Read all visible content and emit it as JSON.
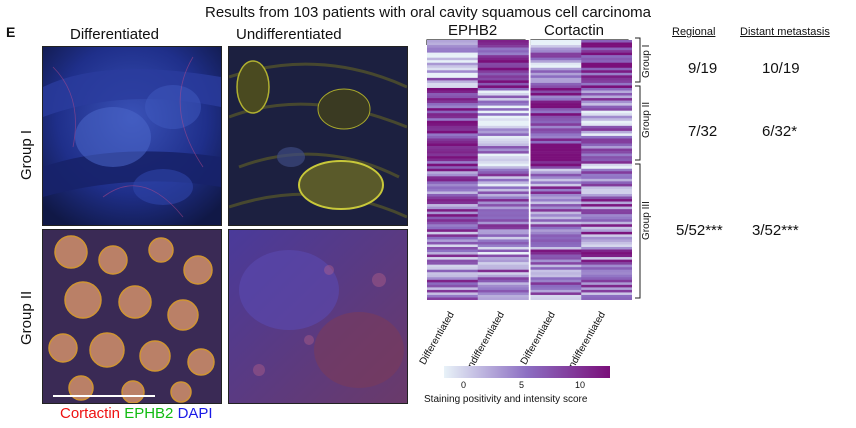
{
  "title": "Results from 103 patients with oral cavity squamous cell carcinoma",
  "panel_letter": "E",
  "micro": {
    "col_headers": [
      "Differentiated",
      "Undifferentiated"
    ],
    "row_headers": [
      "Group I",
      "Group II"
    ],
    "stain_legend": [
      {
        "label": "Cortactin",
        "color": "#ee1111"
      },
      {
        "label": "EPHB2",
        "color": "#11bb11"
      },
      {
        "label": "DAPI",
        "color": "#1a1ae6"
      }
    ]
  },
  "heatmap": {
    "gene_headers": [
      "EPHB2",
      "Cortactin"
    ],
    "column_labels": [
      "Differentiated",
      "Undifferentiated",
      "Differentiated",
      "Undifferentiated"
    ],
    "groups": [
      {
        "label": "Group I",
        "n": 19
      },
      {
        "label": "Group II",
        "n": 32
      },
      {
        "label": "Group III",
        "n": 52
      }
    ],
    "colorbar": {
      "ticks": [
        "0",
        "5",
        "10"
      ],
      "min": 0,
      "max": 12,
      "title": "Staining positivity and intensity score",
      "color_low": "#e8f2f8",
      "color_high": "#7a0f7a"
    }
  },
  "stats": {
    "headers": [
      "Regional",
      "Distant metastasis"
    ],
    "rows": [
      {
        "regional": "9/19",
        "distant": "10/19"
      },
      {
        "regional": "7/32",
        "distant": "6/32*"
      },
      {
        "regional": "5/52***",
        "distant": "3/52***"
      }
    ]
  }
}
